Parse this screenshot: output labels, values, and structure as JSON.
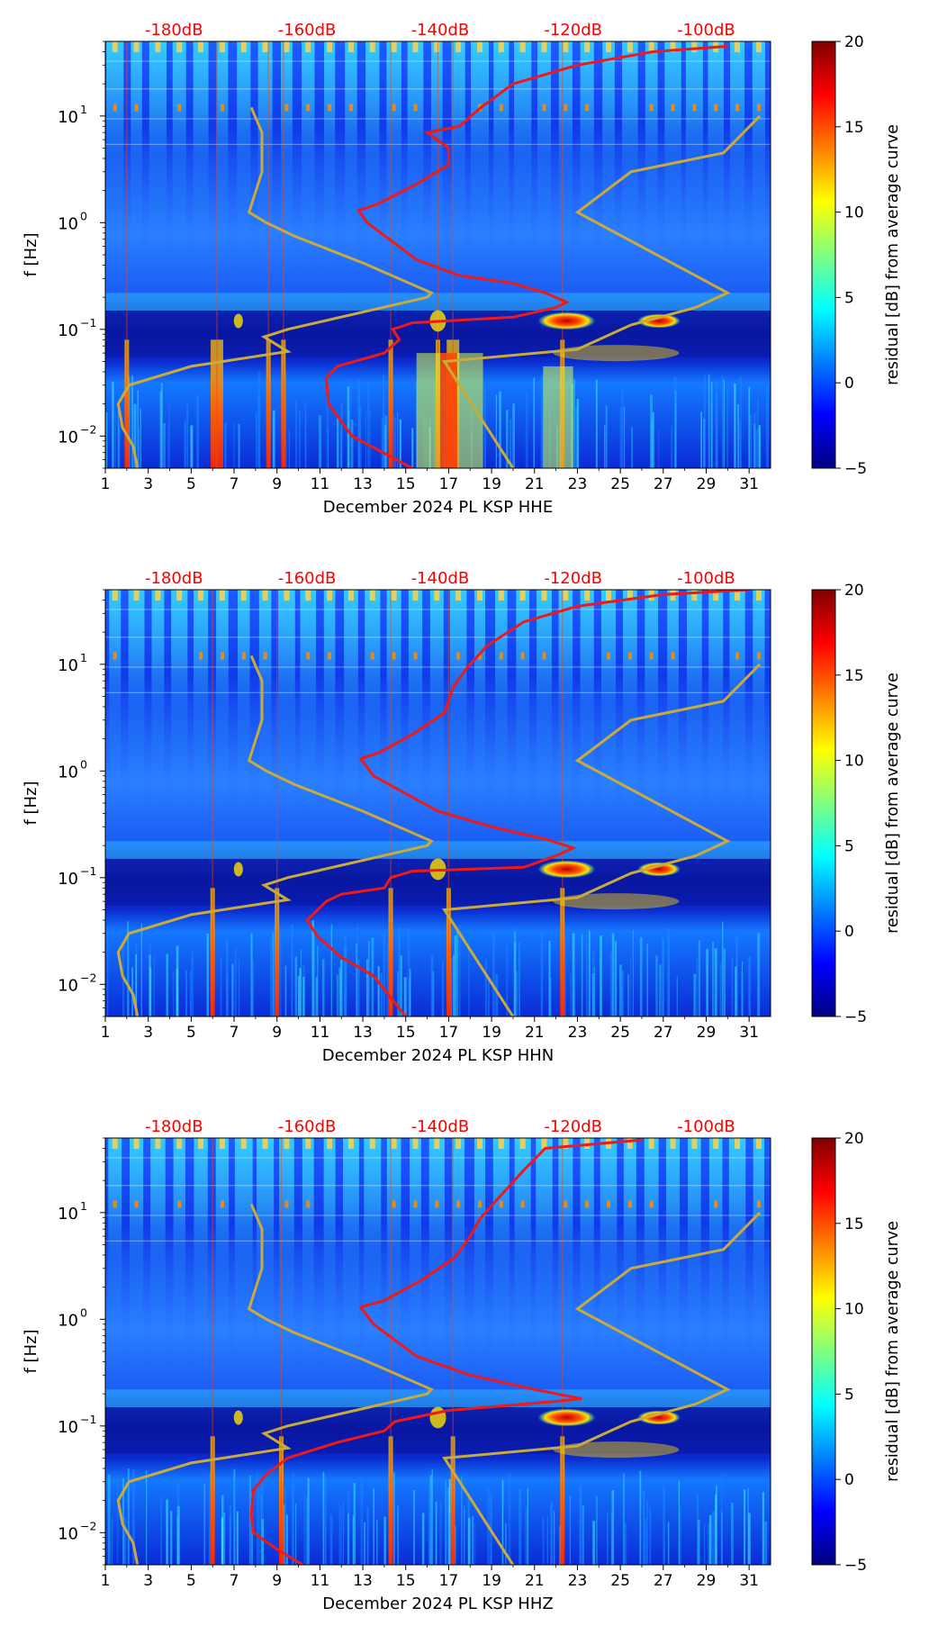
{
  "chart_data": [
    {
      "type": "heatmap",
      "xlabel": "December 2024 PL KSP  HHE",
      "ylabel": "f [Hz]",
      "xlim": [
        1,
        32
      ],
      "ylim": [
        0.005,
        50
      ],
      "yscale": "log",
      "x_ticks": [
        "1",
        "3",
        "5",
        "7",
        "9",
        "11",
        "13",
        "15",
        "17",
        "19",
        "21",
        "23",
        "25",
        "27",
        "29",
        "31"
      ],
      "y_ticks": [
        {
          "label": "10",
          "exp": "−2",
          "value": 0.01
        },
        {
          "label": "10",
          "exp": "−1",
          "value": 0.1
        },
        {
          "label": "10",
          "exp": "0",
          "value": 1
        },
        {
          "label": "10",
          "exp": "1",
          "value": 10
        }
      ],
      "top_labels": [
        "-180dB",
        "-160dB",
        "-140dB",
        "-120dB",
        "-100dB"
      ],
      "colorbar": {
        "label": "residual [dB] from average curve",
        "range": [
          -5,
          20
        ],
        "ticks": [
          "−5",
          "0",
          "5",
          "10",
          "15",
          "20"
        ]
      },
      "vertical_stripe_days": [
        2,
        6.2,
        8.6,
        9.3,
        14.3,
        16.5,
        17.2,
        22.3
      ]
    },
    {
      "type": "heatmap",
      "xlabel": "December 2024 PL KSP  HHN",
      "ylabel": "f [Hz]",
      "xlim": [
        1,
        32
      ],
      "ylim": [
        0.005,
        50
      ],
      "yscale": "log",
      "x_ticks": [
        "1",
        "3",
        "5",
        "7",
        "9",
        "11",
        "13",
        "15",
        "17",
        "19",
        "21",
        "23",
        "25",
        "27",
        "29",
        "31"
      ],
      "y_ticks": [
        {
          "label": "10",
          "exp": "−2",
          "value": 0.01
        },
        {
          "label": "10",
          "exp": "−1",
          "value": 0.1
        },
        {
          "label": "10",
          "exp": "0",
          "value": 1
        },
        {
          "label": "10",
          "exp": "1",
          "value": 10
        }
      ],
      "top_labels": [
        "-180dB",
        "-160dB",
        "-140dB",
        "-120dB",
        "-100dB"
      ],
      "colorbar": {
        "label": "residual [dB] from average curve",
        "range": [
          -5,
          20
        ],
        "ticks": [
          "−5",
          "0",
          "5",
          "10",
          "15",
          "20"
        ]
      },
      "vertical_stripe_days": [
        6.0,
        9.0,
        14.3,
        17.0,
        22.3
      ]
    },
    {
      "type": "heatmap",
      "xlabel": "December 2024 PL KSP  HHZ",
      "ylabel": "f [Hz]",
      "xlim": [
        1,
        32
      ],
      "ylim": [
        0.005,
        50
      ],
      "yscale": "log",
      "x_ticks": [
        "1",
        "3",
        "5",
        "7",
        "9",
        "11",
        "13",
        "15",
        "17",
        "19",
        "21",
        "23",
        "25",
        "27",
        "29",
        "31"
      ],
      "y_ticks": [
        {
          "label": "10",
          "exp": "−2",
          "value": 0.01
        },
        {
          "label": "10",
          "exp": "−1",
          "value": 0.1
        },
        {
          "label": "10",
          "exp": "0",
          "value": 1
        },
        {
          "label": "10",
          "exp": "1",
          "value": 10
        }
      ],
      "top_labels": [
        "-180dB",
        "-160dB",
        "-140dB",
        "-120dB",
        "-100dB"
      ],
      "colorbar": {
        "label": "residual [dB] from average curve",
        "range": [
          -5,
          20
        ],
        "ticks": [
          "−5",
          "0",
          "5",
          "10",
          "15",
          "20"
        ]
      },
      "vertical_stripe_days": [
        6.0,
        9.2,
        14.3,
        17.2,
        22.3
      ]
    }
  ],
  "model_curves": {
    "note": "x expressed on the day axis, y in Hz",
    "nlnm_gold": [
      [
        2.5,
        0.005
      ],
      [
        2.3,
        0.008
      ],
      [
        1.8,
        0.012
      ],
      [
        1.6,
        0.02
      ],
      [
        2.1,
        0.03
      ],
      [
        5,
        0.045
      ],
      [
        9.5,
        0.062
      ],
      [
        8.4,
        0.085
      ],
      [
        9.5,
        0.1
      ],
      [
        16,
        0.2
      ],
      [
        16.2,
        0.22
      ],
      [
        13,
        0.42
      ],
      [
        9.8,
        0.75
      ],
      [
        8.5,
        1.0
      ],
      [
        7.7,
        1.25
      ],
      [
        8.3,
        3
      ],
      [
        8.3,
        7
      ],
      [
        7.8,
        12
      ]
    ],
    "nhnm_gold": [
      [
        20,
        0.005
      ],
      [
        16.8,
        0.05
      ],
      [
        23,
        0.065
      ],
      [
        25.5,
        0.11
      ],
      [
        28.5,
        0.16
      ],
      [
        30,
        0.22
      ],
      [
        23,
        1.25
      ],
      [
        25.5,
        3
      ],
      [
        29.8,
        4.5
      ],
      [
        31.5,
        10
      ]
    ],
    "hhe_red": [
      [
        15.3,
        0.005
      ],
      [
        12.5,
        0.01
      ],
      [
        11.4,
        0.02
      ],
      [
        11.3,
        0.035
      ],
      [
        11.8,
        0.045
      ],
      [
        14,
        0.06
      ],
      [
        14.7,
        0.08
      ],
      [
        14.4,
        0.1
      ],
      [
        15.3,
        0.115
      ],
      [
        20,
        0.13
      ],
      [
        22,
        0.16
      ],
      [
        22.5,
        0.18
      ],
      [
        21.5,
        0.22
      ],
      [
        20,
        0.27
      ],
      [
        17.5,
        0.32
      ],
      [
        15.5,
        0.45
      ],
      [
        13.2,
        1.0
      ],
      [
        12.8,
        1.3
      ],
      [
        13.7,
        1.5
      ],
      [
        15.5,
        2.3
      ],
      [
        17,
        3.5
      ],
      [
        17,
        5
      ],
      [
        16,
        7
      ],
      [
        17.5,
        8
      ],
      [
        18.5,
        12
      ],
      [
        20,
        20
      ],
      [
        23,
        30
      ],
      [
        26.5,
        40
      ],
      [
        30,
        45
      ]
    ],
    "hhn_red": [
      [
        15,
        0.005
      ],
      [
        13.5,
        0.012
      ],
      [
        12,
        0.018
      ],
      [
        10.9,
        0.028
      ],
      [
        10.4,
        0.04
      ],
      [
        11.3,
        0.06
      ],
      [
        12,
        0.07
      ],
      [
        14,
        0.08
      ],
      [
        14.3,
        0.1
      ],
      [
        15.3,
        0.115
      ],
      [
        20.5,
        0.125
      ],
      [
        22,
        0.16
      ],
      [
        22.8,
        0.19
      ],
      [
        21.5,
        0.23
      ],
      [
        19,
        0.3
      ],
      [
        16.5,
        0.42
      ],
      [
        13.5,
        0.9
      ],
      [
        12.9,
        1.3
      ],
      [
        13.8,
        1.5
      ],
      [
        15.3,
        2.2
      ],
      [
        16.8,
        3.5
      ],
      [
        17.2,
        6
      ],
      [
        17.8,
        9
      ],
      [
        18.8,
        15
      ],
      [
        20.5,
        25
      ],
      [
        23,
        35
      ],
      [
        27,
        45
      ],
      [
        31,
        50
      ]
    ],
    "hhz_red": [
      [
        10.2,
        0.005
      ],
      [
        9,
        0.007
      ],
      [
        7.9,
        0.01
      ],
      [
        7.8,
        0.015
      ],
      [
        7.9,
        0.025
      ],
      [
        8.5,
        0.035
      ],
      [
        9.5,
        0.05
      ],
      [
        11.8,
        0.07
      ],
      [
        14,
        0.09
      ],
      [
        14.5,
        0.11
      ],
      [
        17,
        0.14
      ],
      [
        22,
        0.17
      ],
      [
        23.2,
        0.18
      ],
      [
        21,
        0.22
      ],
      [
        18,
        0.3
      ],
      [
        15.5,
        0.45
      ],
      [
        13.5,
        0.9
      ],
      [
        12.9,
        1.3
      ],
      [
        14,
        1.5
      ],
      [
        15.7,
        2.3
      ],
      [
        17.3,
        3.8
      ],
      [
        18,
        6
      ],
      [
        18.5,
        9
      ],
      [
        19.5,
        15
      ],
      [
        20.5,
        25
      ],
      [
        21.5,
        40
      ],
      [
        26,
        48
      ]
    ]
  }
}
